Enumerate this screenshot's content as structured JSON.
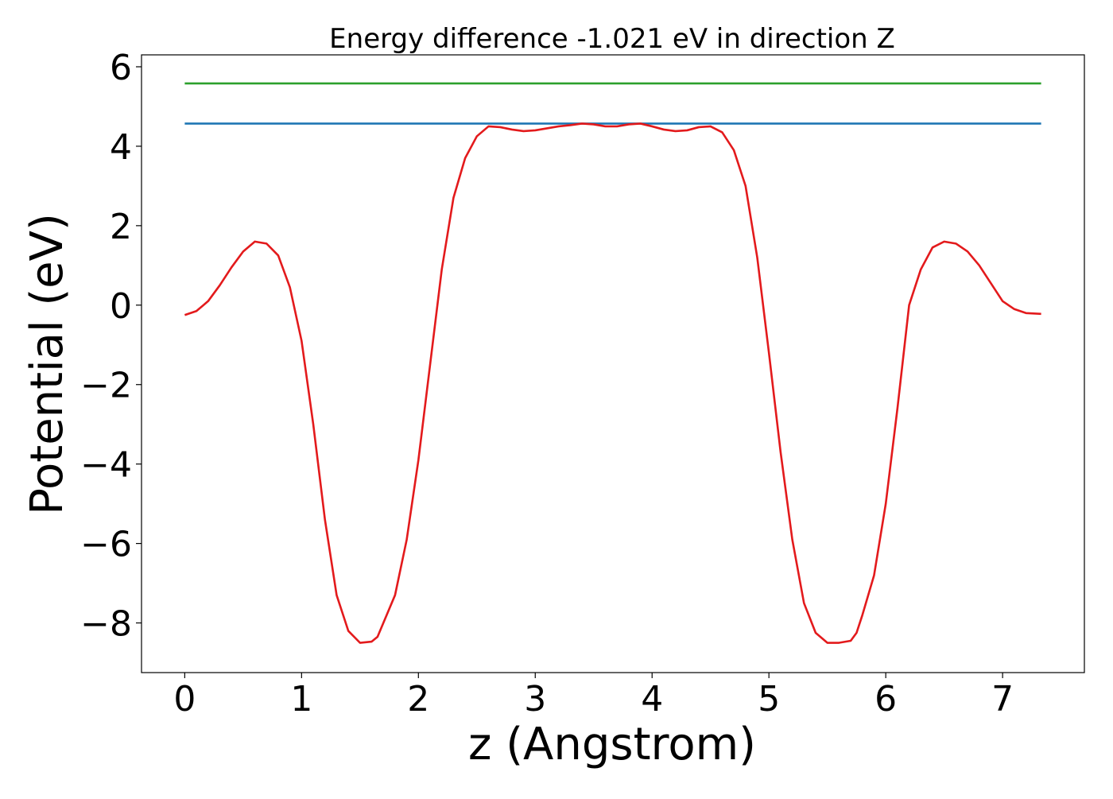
{
  "chart_data": {
    "type": "line",
    "title": "Energy difference -1.021 eV in direction Z",
    "xlabel": "z (Angstrom)",
    "ylabel": "Potential (eV)",
    "xlim": [
      -0.37,
      7.7
    ],
    "ylim": [
      -9.25,
      6.3
    ],
    "xticks": [
      0,
      1,
      2,
      3,
      4,
      5,
      6,
      7
    ],
    "xtick_labels": [
      "0",
      "1",
      "2",
      "3",
      "4",
      "5",
      "6",
      "7"
    ],
    "yticks": [
      -8,
      -6,
      -4,
      -2,
      0,
      2,
      4,
      6
    ],
    "ytick_labels": [
      "−8",
      "−6",
      "−4",
      "−2",
      "0",
      "2",
      "4",
      "6"
    ],
    "grid": false,
    "series": [
      {
        "color": "#2ca02c",
        "x": [
          0,
          7.33
        ],
        "y": [
          5.58,
          5.58
        ]
      },
      {
        "color": "#1f77b4",
        "x": [
          0,
          7.33
        ],
        "y": [
          4.57,
          4.57
        ]
      },
      {
        "color": "#e31a1c",
        "x": [
          0,
          0.1,
          0.2,
          0.3,
          0.4,
          0.5,
          0.6,
          0.7,
          0.8,
          0.9,
          1.0,
          1.1,
          1.2,
          1.3,
          1.4,
          1.5,
          1.6,
          1.65,
          1.7,
          1.8,
          1.9,
          2.0,
          2.1,
          2.2,
          2.3,
          2.4,
          2.5,
          2.6,
          2.7,
          2.8,
          2.9,
          3.0,
          3.1,
          3.2,
          3.3,
          3.4,
          3.5,
          3.6,
          3.7,
          3.8,
          3.9,
          4.0,
          4.1,
          4.2,
          4.3,
          4.4,
          4.5,
          4.6,
          4.7,
          4.8,
          4.9,
          5.0,
          5.1,
          5.2,
          5.3,
          5.4,
          5.5,
          5.6,
          5.7,
          5.75,
          5.8,
          5.9,
          6.0,
          6.1,
          6.2,
          6.3,
          6.4,
          6.5,
          6.6,
          6.7,
          6.8,
          6.9,
          7.0,
          7.1,
          7.2,
          7.33
        ],
        "y": [
          -0.25,
          -0.15,
          0.1,
          0.5,
          0.95,
          1.35,
          1.6,
          1.55,
          1.25,
          0.45,
          -0.9,
          -3.0,
          -5.4,
          -7.3,
          -8.2,
          -8.5,
          -8.47,
          -8.35,
          -8.0,
          -7.3,
          -5.9,
          -3.9,
          -1.5,
          0.9,
          2.7,
          3.7,
          4.25,
          4.5,
          4.48,
          4.42,
          4.38,
          4.4,
          4.45,
          4.5,
          4.53,
          4.57,
          4.55,
          4.5,
          4.5,
          4.55,
          4.57,
          4.5,
          4.42,
          4.38,
          4.4,
          4.48,
          4.5,
          4.35,
          3.9,
          3.0,
          1.2,
          -1.2,
          -3.7,
          -5.9,
          -7.5,
          -8.25,
          -8.5,
          -8.5,
          -8.45,
          -8.25,
          -7.8,
          -6.8,
          -5.0,
          -2.6,
          0.0,
          0.9,
          1.45,
          1.6,
          1.55,
          1.35,
          1.0,
          0.55,
          0.1,
          -0.1,
          -0.2,
          -0.22
        ]
      }
    ]
  }
}
